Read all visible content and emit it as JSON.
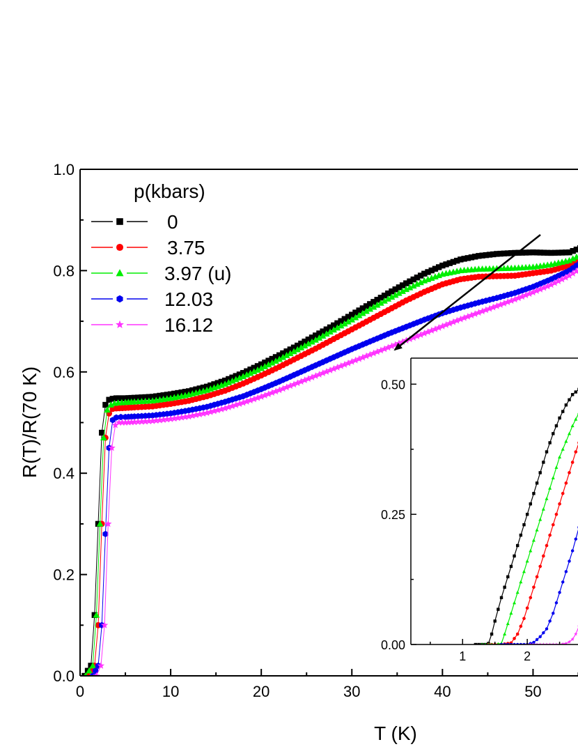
{
  "chart_data": {
    "type": "scatter",
    "xlabel": "T (K)",
    "ylabel": "R(T)/R(70 K)",
    "xlim": [
      0,
      56.5
    ],
    "ylim": [
      0,
      1.0
    ],
    "x_ticks": [
      "0",
      "10",
      "20",
      "30",
      "40",
      "50"
    ],
    "y_ticks": [
      "0.0",
      "0.2",
      "0.4",
      "0.6",
      "0.8",
      "1.0"
    ],
    "legend": {
      "title": "p(kbars)",
      "position": "top-left"
    },
    "series": [
      {
        "name": "0",
        "color": "#000000",
        "marker": "square",
        "x": [
          0.5,
          1.2,
          1.6,
          2.0,
          2.4,
          2.8,
          3.2,
          3.6,
          4,
          5,
          6,
          8,
          10,
          12,
          14,
          16,
          18,
          20,
          22,
          24,
          26,
          28,
          30,
          32,
          34,
          36,
          38,
          40,
          42,
          44,
          46,
          48,
          50,
          52,
          54,
          56
        ],
        "y": [
          0.0,
          0.02,
          0.12,
          0.3,
          0.48,
          0.535,
          0.545,
          0.547,
          0.548,
          0.548,
          0.549,
          0.551,
          0.556,
          0.562,
          0.571,
          0.583,
          0.598,
          0.615,
          0.633,
          0.652,
          0.672,
          0.692,
          0.713,
          0.734,
          0.755,
          0.775,
          0.794,
          0.81,
          0.822,
          0.829,
          0.833,
          0.835,
          0.836,
          0.835,
          0.836,
          0.85
        ]
      },
      {
        "name": "3.75",
        "color": "#ff0000",
        "marker": "circle",
        "x": [
          0.8,
          1.6,
          2.0,
          2.4,
          2.8,
          3.2,
          3.6,
          4,
          5,
          6,
          8,
          10,
          12,
          14,
          16,
          18,
          20,
          22,
          24,
          26,
          28,
          30,
          32,
          34,
          36,
          38,
          40,
          42,
          44,
          46,
          48,
          50,
          52,
          54,
          56
        ],
        "y": [
          0.0,
          0.02,
          0.1,
          0.3,
          0.47,
          0.518,
          0.527,
          0.528,
          0.529,
          0.53,
          0.532,
          0.537,
          0.543,
          0.552,
          0.563,
          0.577,
          0.593,
          0.61,
          0.628,
          0.646,
          0.665,
          0.684,
          0.703,
          0.722,
          0.741,
          0.758,
          0.773,
          0.783,
          0.788,
          0.789,
          0.79,
          0.795,
          0.8,
          0.81,
          0.83
        ]
      },
      {
        "name": "3.97 (u)",
        "color": "#00ee00",
        "marker": "triangle",
        "x": [
          0.6,
          1.4,
          1.8,
          2.2,
          2.6,
          3.0,
          3.4,
          3.8,
          4.2,
          5,
          6,
          8,
          10,
          12,
          14,
          16,
          18,
          20,
          22,
          24,
          26,
          28,
          30,
          32,
          34,
          36,
          38,
          40,
          42,
          44,
          46,
          48,
          50,
          52,
          54,
          56
        ],
        "y": [
          0.0,
          0.02,
          0.12,
          0.3,
          0.47,
          0.525,
          0.535,
          0.538,
          0.539,
          0.54,
          0.541,
          0.543,
          0.548,
          0.555,
          0.564,
          0.576,
          0.591,
          0.607,
          0.625,
          0.644,
          0.663,
          0.683,
          0.703,
          0.724,
          0.744,
          0.763,
          0.78,
          0.793,
          0.8,
          0.803,
          0.804,
          0.805,
          0.807,
          0.812,
          0.82,
          0.837
        ]
      },
      {
        "name": "12.03",
        "color": "#0000ee",
        "marker": "hexagon",
        "x": [
          1.4,
          2.0,
          2.4,
          2.8,
          3.2,
          3.6,
          4.0,
          4.5,
          5,
          6,
          8,
          10,
          12,
          14,
          16,
          18,
          20,
          22,
          24,
          26,
          28,
          30,
          32,
          34,
          36,
          38,
          40,
          42,
          44,
          46,
          48,
          50,
          52,
          54,
          56
        ],
        "y": [
          0.0,
          0.02,
          0.1,
          0.28,
          0.45,
          0.505,
          0.51,
          0.511,
          0.511,
          0.512,
          0.514,
          0.518,
          0.524,
          0.531,
          0.541,
          0.552,
          0.566,
          0.581,
          0.597,
          0.613,
          0.629,
          0.645,
          0.66,
          0.675,
          0.689,
          0.703,
          0.716,
          0.727,
          0.737,
          0.746,
          0.756,
          0.768,
          0.783,
          0.8,
          0.825
        ]
      },
      {
        "name": "16.12",
        "color": "#ff33ff",
        "marker": "star",
        "x": [
          1.8,
          2.3,
          2.7,
          3.1,
          3.5,
          3.9,
          4.3,
          5,
          6,
          8,
          10,
          12,
          14,
          16,
          18,
          20,
          22,
          24,
          26,
          28,
          30,
          32,
          34,
          36,
          38,
          40,
          42,
          44,
          46,
          48,
          50,
          52,
          54,
          56
        ],
        "y": [
          0.0,
          0.02,
          0.1,
          0.3,
          0.45,
          0.495,
          0.5,
          0.5,
          0.501,
          0.503,
          0.507,
          0.512,
          0.519,
          0.528,
          0.539,
          0.551,
          0.564,
          0.578,
          0.592,
          0.606,
          0.62,
          0.634,
          0.648,
          0.662,
          0.676,
          0.69,
          0.704,
          0.717,
          0.73,
          0.743,
          0.757,
          0.772,
          0.79,
          0.812
        ]
      }
    ],
    "inset": {
      "type": "line",
      "xlim": [
        0.2,
        3.0
      ],
      "ylim": [
        0,
        0.55
      ],
      "x_ticks": [
        "1",
        "2"
      ],
      "y_ticks": [
        "0.00",
        "0.25",
        "0.50"
      ],
      "series": [
        {
          "name": "0",
          "color": "#000000",
          "marker": "square",
          "x": [
            1.2,
            1.3,
            1.35,
            1.4,
            1.45,
            1.5,
            1.6,
            1.7,
            1.8,
            1.9,
            2.0,
            2.1,
            2.2,
            2.3,
            2.4,
            2.5,
            2.6,
            2.7,
            2.8,
            2.9,
            3.0
          ],
          "y": [
            0.0,
            0.0,
            0.0,
            0.002,
            0.02,
            0.045,
            0.09,
            0.13,
            0.17,
            0.21,
            0.25,
            0.29,
            0.33,
            0.37,
            0.405,
            0.435,
            0.46,
            0.48,
            0.49,
            0.495,
            0.498
          ]
        },
        {
          "name": "3.75",
          "color": "#ff0000",
          "marker": "circle",
          "x": [
            1.4,
            1.6,
            1.75,
            1.85,
            1.95,
            2.05,
            2.15,
            2.25,
            2.35,
            2.45,
            2.55,
            2.65,
            2.75,
            2.85,
            2.95
          ],
          "y": [
            0.0,
            0.0,
            0.003,
            0.02,
            0.05,
            0.09,
            0.13,
            0.17,
            0.21,
            0.25,
            0.29,
            0.33,
            0.37,
            0.405,
            0.44
          ]
        },
        {
          "name": "3.97 (u)",
          "color": "#00ee00",
          "marker": "triangle",
          "x": [
            1.3,
            1.5,
            1.6,
            1.65,
            1.7,
            1.8,
            1.9,
            2.0,
            2.1,
            2.2,
            2.3,
            2.4,
            2.5,
            2.6,
            2.7,
            2.8,
            2.9,
            3.0
          ],
          "y": [
            0.0,
            0.0,
            0.002,
            0.02,
            0.04,
            0.08,
            0.12,
            0.16,
            0.2,
            0.24,
            0.28,
            0.32,
            0.36,
            0.39,
            0.42,
            0.445,
            0.46,
            0.47
          ]
        },
        {
          "name": "12.03",
          "color": "#0000ee",
          "marker": "hexagon",
          "x": [
            1.6,
            1.8,
            2.0,
            2.1,
            2.2,
            2.3,
            2.4,
            2.5,
            2.6,
            2.7,
            2.8,
            2.9,
            3.0
          ],
          "y": [
            0.0,
            0.0,
            0.0,
            0.004,
            0.015,
            0.03,
            0.06,
            0.1,
            0.14,
            0.18,
            0.225,
            0.27,
            0.31
          ]
        },
        {
          "name": "16.12",
          "color": "#ff33ff",
          "marker": "star",
          "x": [
            2.0,
            2.2,
            2.4,
            2.5,
            2.6,
            2.65,
            2.7,
            2.75,
            2.8,
            2.85,
            2.9,
            2.95,
            3.0
          ],
          "y": [
            0.0,
            0.0,
            0.0,
            0.0,
            0.002,
            0.005,
            0.01,
            0.02,
            0.035,
            0.055,
            0.08,
            0.11,
            0.14
          ]
        }
      ]
    }
  }
}
